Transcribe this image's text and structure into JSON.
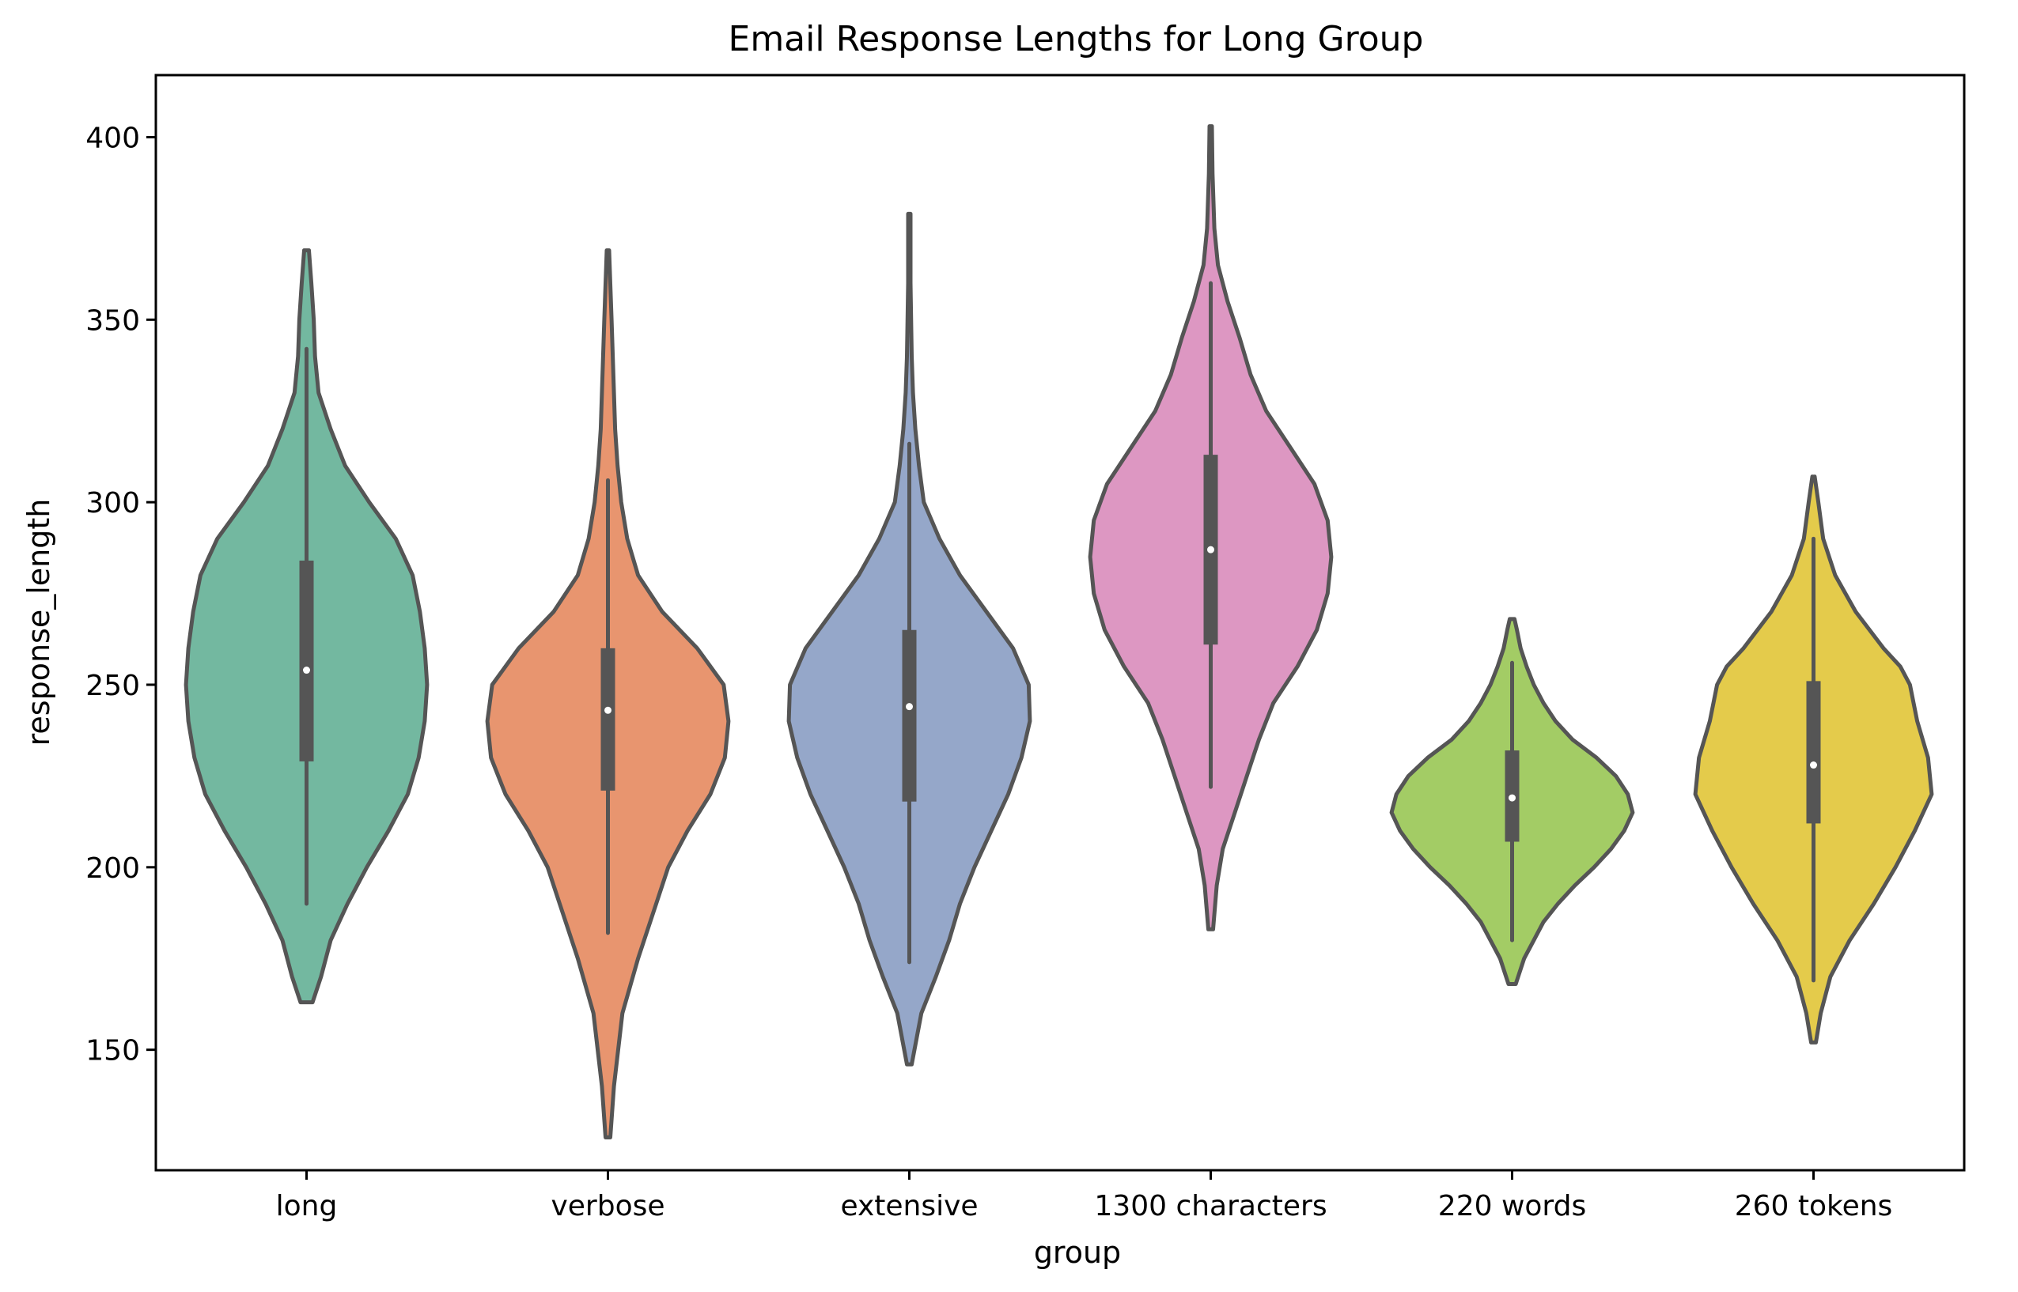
{
  "chart_data": {
    "type": "violin",
    "title": "Email Response Lengths for Long Group",
    "xlabel": "group",
    "ylabel": "response_length",
    "ylim": [
      117,
      417
    ],
    "yticks": [
      150,
      200,
      250,
      300,
      350,
      400
    ],
    "grid": false,
    "legend": "none",
    "categories": [
      "long",
      "verbose",
      "extensive",
      "1300 characters",
      "220 words",
      "260 tokens"
    ],
    "series": [
      {
        "category": "long",
        "color": "#73b8a0",
        "q1": 229,
        "median": 254,
        "q3": 284,
        "whisker_low": 190,
        "whisker_high": 342,
        "min": 163,
        "max": 369,
        "density": [
          [
            163,
            0.05
          ],
          [
            170,
            0.12
          ],
          [
            180,
            0.2
          ],
          [
            190,
            0.34
          ],
          [
            200,
            0.5
          ],
          [
            210,
            0.68
          ],
          [
            220,
            0.84
          ],
          [
            230,
            0.93
          ],
          [
            240,
            0.98
          ],
          [
            250,
            1.0
          ],
          [
            260,
            0.98
          ],
          [
            270,
            0.94
          ],
          [
            280,
            0.88
          ],
          [
            290,
            0.74
          ],
          [
            300,
            0.52
          ],
          [
            310,
            0.32
          ],
          [
            320,
            0.2
          ],
          [
            330,
            0.1
          ],
          [
            340,
            0.07
          ],
          [
            350,
            0.06
          ],
          [
            360,
            0.04
          ],
          [
            369,
            0.02
          ]
        ]
      },
      {
        "category": "verbose",
        "color": "#e8956f",
        "q1": 221,
        "median": 243,
        "q3": 260,
        "whisker_low": 182,
        "whisker_high": 306,
        "min": 126,
        "max": 369,
        "density": [
          [
            126,
            0.02
          ],
          [
            140,
            0.05
          ],
          [
            160,
            0.12
          ],
          [
            175,
            0.25
          ],
          [
            190,
            0.4
          ],
          [
            200,
            0.5
          ],
          [
            210,
            0.66
          ],
          [
            220,
            0.85
          ],
          [
            230,
            0.97
          ],
          [
            240,
            1.0
          ],
          [
            250,
            0.96
          ],
          [
            260,
            0.74
          ],
          [
            270,
            0.45
          ],
          [
            280,
            0.25
          ],
          [
            290,
            0.16
          ],
          [
            300,
            0.11
          ],
          [
            310,
            0.08
          ],
          [
            320,
            0.06
          ],
          [
            330,
            0.05
          ],
          [
            340,
            0.04
          ],
          [
            350,
            0.03
          ],
          [
            369,
            0.01
          ]
        ]
      },
      {
        "category": "extensive",
        "color": "#95a7c9",
        "q1": 218,
        "median": 244,
        "q3": 265,
        "whisker_low": 174,
        "whisker_high": 316,
        "min": 146,
        "max": 379,
        "density": [
          [
            146,
            0.02
          ],
          [
            160,
            0.1
          ],
          [
            170,
            0.22
          ],
          [
            180,
            0.33
          ],
          [
            190,
            0.42
          ],
          [
            200,
            0.54
          ],
          [
            210,
            0.68
          ],
          [
            220,
            0.82
          ],
          [
            230,
            0.93
          ],
          [
            240,
            1.0
          ],
          [
            250,
            0.99
          ],
          [
            260,
            0.86
          ],
          [
            270,
            0.64
          ],
          [
            280,
            0.42
          ],
          [
            290,
            0.25
          ],
          [
            300,
            0.12
          ],
          [
            310,
            0.08
          ],
          [
            320,
            0.05
          ],
          [
            330,
            0.03
          ],
          [
            340,
            0.02
          ],
          [
            360,
            0.01
          ],
          [
            379,
            0.01
          ]
        ]
      },
      {
        "category": "1300 characters",
        "color": "#dd97c2",
        "q1": 261,
        "median": 287,
        "q3": 313,
        "whisker_low": 222,
        "whisker_high": 360,
        "min": 183,
        "max": 403,
        "density": [
          [
            183,
            0.02
          ],
          [
            195,
            0.05
          ],
          [
            205,
            0.1
          ],
          [
            215,
            0.2
          ],
          [
            225,
            0.3
          ],
          [
            235,
            0.4
          ],
          [
            245,
            0.52
          ],
          [
            255,
            0.72
          ],
          [
            265,
            0.88
          ],
          [
            275,
            0.97
          ],
          [
            285,
            1.0
          ],
          [
            295,
            0.97
          ],
          [
            305,
            0.86
          ],
          [
            315,
            0.66
          ],
          [
            325,
            0.46
          ],
          [
            335,
            0.33
          ],
          [
            345,
            0.24
          ],
          [
            355,
            0.14
          ],
          [
            365,
            0.06
          ],
          [
            375,
            0.03
          ],
          [
            390,
            0.015
          ],
          [
            403,
            0.01
          ]
        ]
      },
      {
        "category": "220 words",
        "color": "#a3cc65",
        "q1": 207,
        "median": 219,
        "q3": 232,
        "whisker_low": 180,
        "whisker_high": 256,
        "min": 168,
        "max": 268,
        "density": [
          [
            168,
            0.03
          ],
          [
            175,
            0.1
          ],
          [
            180,
            0.18
          ],
          [
            185,
            0.26
          ],
          [
            190,
            0.38
          ],
          [
            195,
            0.52
          ],
          [
            200,
            0.68
          ],
          [
            205,
            0.82
          ],
          [
            210,
            0.93
          ],
          [
            215,
            1.0
          ],
          [
            220,
            0.96
          ],
          [
            225,
            0.86
          ],
          [
            230,
            0.7
          ],
          [
            235,
            0.5
          ],
          [
            240,
            0.36
          ],
          [
            245,
            0.26
          ],
          [
            250,
            0.18
          ],
          [
            255,
            0.12
          ],
          [
            260,
            0.07
          ],
          [
            265,
            0.04
          ],
          [
            268,
            0.02
          ]
        ]
      },
      {
        "category": "260 tokens",
        "color": "#e4cb4b",
        "q1": 212,
        "median": 228,
        "q3": 251,
        "whisker_low": 169,
        "whisker_high": 290,
        "min": 152,
        "max": 307,
        "density": [
          [
            152,
            0.02
          ],
          [
            160,
            0.06
          ],
          [
            170,
            0.14
          ],
          [
            180,
            0.3
          ],
          [
            190,
            0.5
          ],
          [
            200,
            0.68
          ],
          [
            210,
            0.84
          ],
          [
            220,
            0.98
          ],
          [
            230,
            0.95
          ],
          [
            240,
            0.86
          ],
          [
            245,
            0.83
          ],
          [
            250,
            0.8
          ],
          [
            255,
            0.72
          ],
          [
            260,
            0.58
          ],
          [
            270,
            0.35
          ],
          [
            280,
            0.18
          ],
          [
            290,
            0.08
          ],
          [
            300,
            0.04
          ],
          [
            307,
            0.01
          ]
        ]
      }
    ]
  }
}
